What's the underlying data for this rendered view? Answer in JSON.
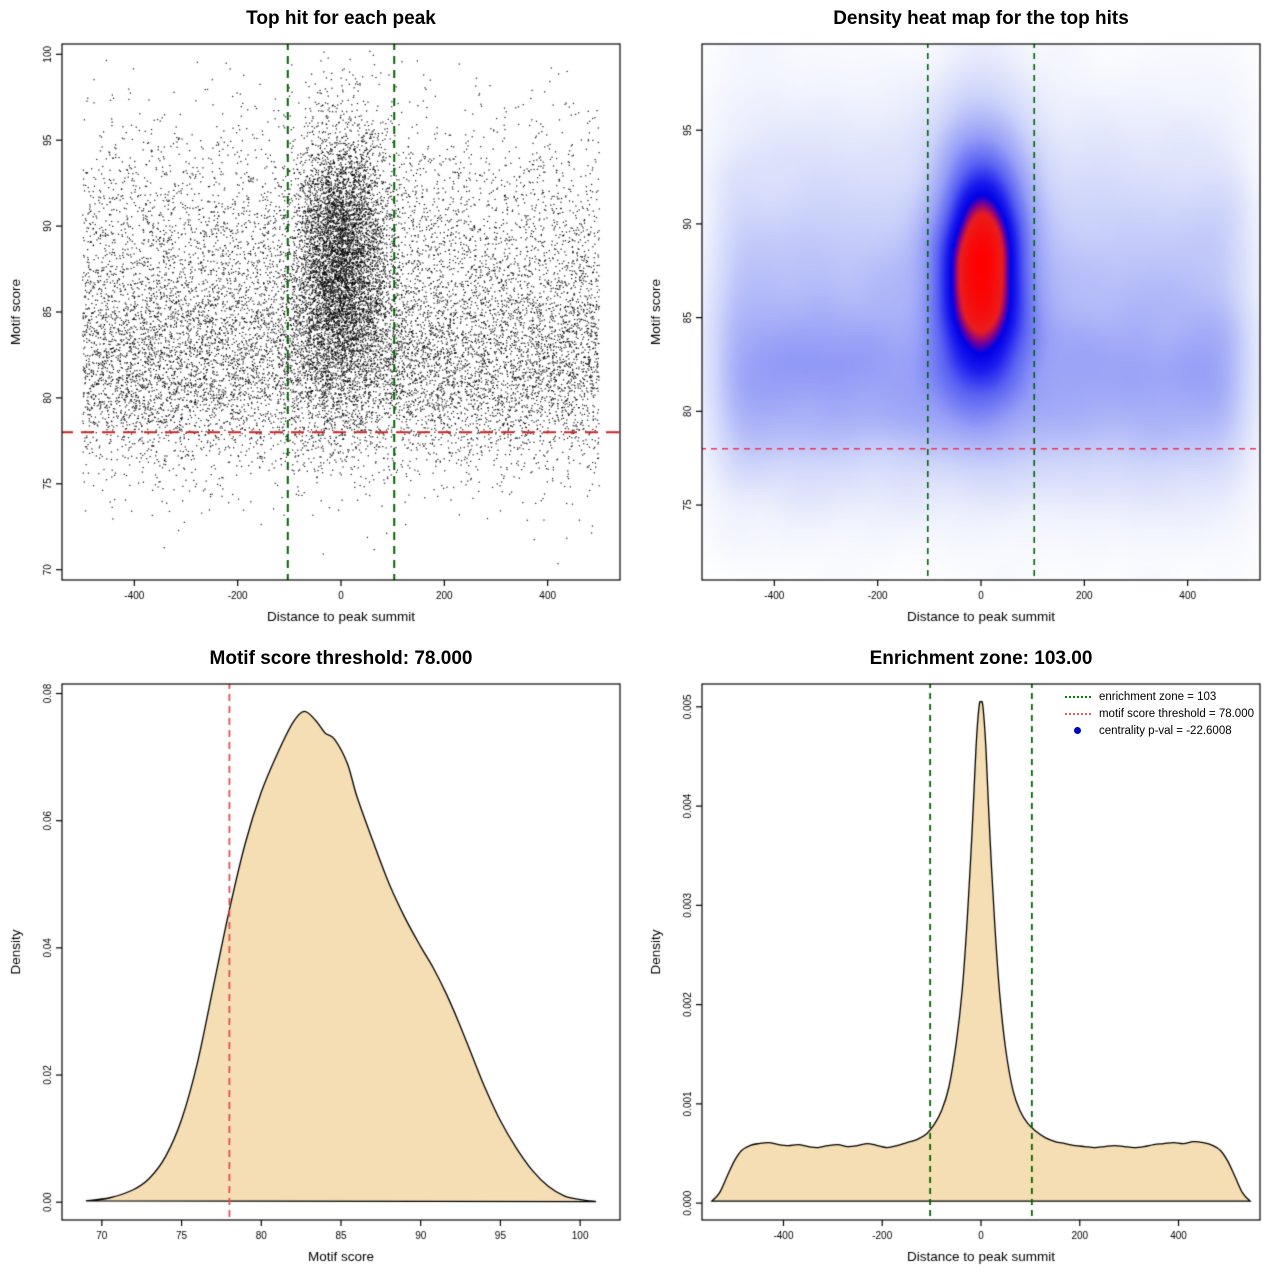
{
  "page": {
    "background": "#ffffff"
  },
  "chart_data": [
    {
      "type": "scatter",
      "title": "Top hit for each peak",
      "xlabel": "Distance to peak summit",
      "ylabel": "Motif score",
      "xlim": [
        -540,
        540
      ],
      "ylim": [
        69.4,
        100.6
      ],
      "xticks": [
        -400,
        -200,
        0,
        200,
        400
      ],
      "xticklabels": [
        "-400",
        "-200",
        "0",
        "200",
        "400"
      ],
      "yticks": [
        70,
        75,
        80,
        85,
        90,
        95,
        100
      ],
      "yticklabels": [
        "70",
        "75",
        "80",
        "85",
        "90",
        "95",
        "100"
      ],
      "grid": false,
      "point_color": "#000000",
      "points": {
        "seed": 42,
        "n_background": 12500,
        "n_cluster": 6000,
        "background": {
          "x_min": -500,
          "x_max": 500,
          "score_mixture": [
            {
              "w": 0.5,
              "mean": 81.3,
              "sd": 2.9
            },
            {
              "w": 0.35,
              "mean": 85.5,
              "sd": 4.2
            },
            {
              "w": 0.15,
              "mean": 90.0,
              "sd": 4.0
            }
          ],
          "score_min": 70.2,
          "score_max": 100.3
        },
        "cluster": {
          "x_mean": 0,
          "x_sd": 46,
          "score_mean": 87.8,
          "score_sd": 3.9,
          "score_min": 74,
          "score_max": 100.3
        }
      },
      "vlines": [
        {
          "x": -103,
          "color": "#006400",
          "width": 2,
          "dash": [
            8,
            6
          ]
        },
        {
          "x": 103,
          "color": "#006400",
          "width": 2,
          "dash": [
            8,
            6
          ]
        }
      ],
      "hlines": [
        {
          "y": 78,
          "color": "#cc2222",
          "width": 2,
          "dash": [
            13,
            8
          ]
        }
      ]
    },
    {
      "type": "heatmap",
      "title": "Density heat map for the top hits",
      "xlabel": "Distance to peak summit",
      "ylabel": "Motif score",
      "xlim": [
        -540,
        540
      ],
      "ylim": [
        71,
        99.6
      ],
      "xticks": [
        -400,
        -200,
        0,
        200,
        400
      ],
      "xticklabels": [
        "-400",
        "-200",
        "0",
        "200",
        "400"
      ],
      "yticks": [
        75,
        80,
        85,
        90,
        95
      ],
      "yticklabels": [
        "75",
        "80",
        "85",
        "90",
        "95"
      ],
      "grid": false,
      "palette": [
        [
          0.0,
          "#ffffff"
        ],
        [
          0.08,
          "#f2f4fd"
        ],
        [
          0.25,
          "#cdd4fa"
        ],
        [
          0.45,
          "#969ef7"
        ],
        [
          0.6,
          "#5a62f3"
        ],
        [
          0.72,
          "#1919ee"
        ],
        [
          0.79,
          "#0000e6"
        ],
        [
          0.83,
          "#780096"
        ],
        [
          0.88,
          "#eb1e1e"
        ],
        [
          1.0,
          "#ff0000"
        ]
      ],
      "density_grid": {
        "nx": 200,
        "ny": 180,
        "blur_radius": 5,
        "blur_passes": 3,
        "gamma": 0.55
      },
      "samples": {
        "seed": 7,
        "n_background": 26000,
        "n_cluster": 13000,
        "background": {
          "x_min": -500,
          "x_max": 500,
          "score_mixture": [
            {
              "w": 0.5,
              "mean": 81.3,
              "sd": 2.9
            },
            {
              "w": 0.35,
              "mean": 85.5,
              "sd": 4.2
            },
            {
              "w": 0.15,
              "mean": 90.0,
              "sd": 4.0
            }
          ],
          "score_min": 70.2,
          "score_max": 99.5
        },
        "cluster": {
          "x_mean": 0,
          "x_sd": 46,
          "score_mean": 87.8,
          "score_sd": 3.9,
          "score_min": 74,
          "score_max": 99.5
        }
      },
      "vlines": [
        {
          "x": -103,
          "color": "#006400",
          "width": 1.6,
          "dash": [
            6,
            5
          ]
        },
        {
          "x": 103,
          "color": "#006400",
          "width": 1.6,
          "dash": [
            6,
            5
          ]
        }
      ],
      "hlines": [
        {
          "y": 78,
          "color": "#ee3355",
          "width": 1.4,
          "dash": [
            6,
            5
          ]
        }
      ]
    },
    {
      "type": "density",
      "title": "Motif score threshold: 78.000",
      "xlabel": "Motif score",
      "ylabel": "Density",
      "xlim": [
        67.5,
        102.5
      ],
      "ylim": [
        -0.0028,
        0.0815
      ],
      "xticks": [
        70,
        75,
        80,
        85,
        90,
        95,
        100
      ],
      "xticklabels": [
        "70",
        "75",
        "80",
        "85",
        "90",
        "95",
        "100"
      ],
      "yticks": [
        0,
        0.02,
        0.04,
        0.06,
        0.08
      ],
      "yticklabels": [
        "0.00",
        "0.02",
        "0.04",
        "0.06",
        "0.08"
      ],
      "grid": false,
      "fill": "#f5deb3",
      "stroke": "#000000",
      "curve": [
        [
          69,
          0.0002
        ],
        [
          70.5,
          0.0007
        ],
        [
          72,
          0.002
        ],
        [
          73,
          0.0038
        ],
        [
          74,
          0.0072
        ],
        [
          75,
          0.013
        ],
        [
          76,
          0.022
        ],
        [
          77,
          0.034
        ],
        [
          78,
          0.046
        ],
        [
          79,
          0.0565
        ],
        [
          80,
          0.0645
        ],
        [
          81,
          0.0705
        ],
        [
          82,
          0.0755
        ],
        [
          82.7,
          0.0772
        ],
        [
          83.4,
          0.0758
        ],
        [
          84,
          0.0738
        ],
        [
          84.6,
          0.0728
        ],
        [
          85.4,
          0.069
        ],
        [
          86,
          0.0638
        ],
        [
          87,
          0.0568
        ],
        [
          88,
          0.0502
        ],
        [
          89,
          0.0448
        ],
        [
          90,
          0.0402
        ],
        [
          90.8,
          0.0368
        ],
        [
          91.6,
          0.0328
        ],
        [
          92.4,
          0.0282
        ],
        [
          93.2,
          0.0232
        ],
        [
          94,
          0.0182
        ],
        [
          95,
          0.0128
        ],
        [
          96,
          0.0085
        ],
        [
          97,
          0.005
        ],
        [
          98,
          0.0025
        ],
        [
          99,
          0.001
        ],
        [
          100,
          0.0004
        ],
        [
          101,
          0.0001
        ]
      ],
      "vlines": [
        {
          "x": 78,
          "color": "#e05050",
          "width": 1.8,
          "dash": [
            7,
            5
          ]
        }
      ],
      "hlines": []
    },
    {
      "type": "density",
      "title": "Enrichment zone: 103.00",
      "xlabel": "Distance to peak summit",
      "ylabel": "Density",
      "xlim": [
        -565,
        565
      ],
      "ylim": [
        -0.00017,
        0.00523
      ],
      "xticks": [
        -400,
        -200,
        0,
        200,
        400
      ],
      "xticklabels": [
        "-400",
        "-200",
        "0",
        "200",
        "400"
      ],
      "yticks": [
        0,
        0.001,
        0.002,
        0.003,
        0.004,
        0.005
      ],
      "yticklabels": [
        "0.000",
        "0.001",
        "0.002",
        "0.003",
        "0.004",
        "0.005"
      ],
      "grid": false,
      "fill": "#f5deb3",
      "stroke": "#000000",
      "curve": [
        [
          -545,
          2e-05
        ],
        [
          -530,
          0.0001
        ],
        [
          -515,
          0.00026
        ],
        [
          -500,
          0.00042
        ],
        [
          -485,
          0.00053
        ],
        [
          -468,
          0.00058
        ],
        [
          -450,
          0.0006
        ],
        [
          -430,
          0.00061
        ],
        [
          -410,
          0.00059
        ],
        [
          -390,
          0.00058
        ],
        [
          -370,
          0.00059
        ],
        [
          -350,
          0.00057
        ],
        [
          -330,
          0.00056
        ],
        [
          -310,
          0.00058
        ],
        [
          -290,
          0.00059
        ],
        [
          -270,
          0.00057
        ],
        [
          -250,
          0.00058
        ],
        [
          -230,
          0.0006
        ],
        [
          -210,
          0.00058
        ],
        [
          -190,
          0.00056
        ],
        [
          -170,
          0.00058
        ],
        [
          -150,
          0.00061
        ],
        [
          -130,
          0.00064
        ],
        [
          -110,
          0.0007
        ],
        [
          -95,
          0.00079
        ],
        [
          -80,
          0.00093
        ],
        [
          -65,
          0.00117
        ],
        [
          -50,
          0.00162
        ],
        [
          -38,
          0.00215
        ],
        [
          -28,
          0.00285
        ],
        [
          -18,
          0.00375
        ],
        [
          -10,
          0.0046
        ],
        [
          -4,
          0.005
        ],
        [
          0,
          0.00505
        ],
        [
          4,
          0.005
        ],
        [
          10,
          0.00458
        ],
        [
          18,
          0.0037
        ],
        [
          28,
          0.0028
        ],
        [
          38,
          0.0021
        ],
        [
          50,
          0.00155
        ],
        [
          65,
          0.00113
        ],
        [
          80,
          0.00092
        ],
        [
          95,
          0.0008
        ],
        [
          110,
          0.00073
        ],
        [
          130,
          0.00066
        ],
        [
          150,
          0.00062
        ],
        [
          170,
          0.0006
        ],
        [
          190,
          0.00058
        ],
        [
          210,
          0.00057
        ],
        [
          230,
          0.00056
        ],
        [
          250,
          0.00057
        ],
        [
          270,
          0.00058
        ],
        [
          290,
          0.00057
        ],
        [
          310,
          0.00056
        ],
        [
          330,
          0.00057
        ],
        [
          350,
          0.00059
        ],
        [
          370,
          0.0006
        ],
        [
          390,
          0.00061
        ],
        [
          410,
          0.0006
        ],
        [
          430,
          0.00062
        ],
        [
          450,
          0.00061
        ],
        [
          470,
          0.00058
        ],
        [
          485,
          0.00053
        ],
        [
          500,
          0.00042
        ],
        [
          515,
          0.00026
        ],
        [
          530,
          0.0001
        ],
        [
          545,
          2e-05
        ]
      ],
      "vlines": [
        {
          "x": -103,
          "color": "#006400",
          "width": 1.8,
          "dash": [
            6,
            5
          ]
        },
        {
          "x": 103,
          "color": "#006400",
          "width": 1.8,
          "dash": [
            6,
            5
          ]
        }
      ],
      "hlines": [],
      "legend": {
        "items": [
          {
            "swatch": "line",
            "color": "#008000",
            "label": "enrichment zone = 103"
          },
          {
            "swatch": "line",
            "color": "#ff5555",
            "label": "motif score threshold = 78.000"
          },
          {
            "swatch": "dot",
            "color": "#0000bb",
            "label": "centrality p-val = -22.6008"
          }
        ]
      }
    }
  ]
}
